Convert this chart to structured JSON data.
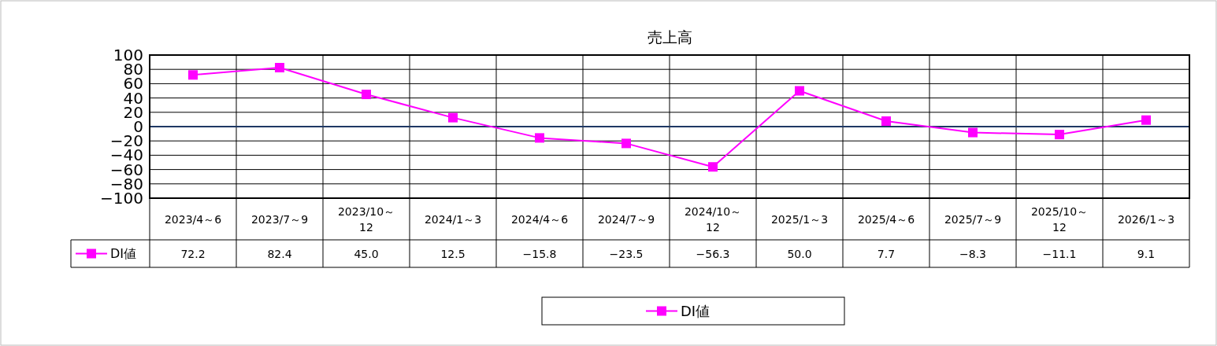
{
  "chart_data": {
    "type": "line",
    "title": "売上高",
    "categories": [
      "2023/4～6",
      "2023/7～9",
      "2023/10～12",
      "2024/1～3",
      "2024/4～6",
      "2024/7～9",
      "2024/10～12",
      "2025/1～3",
      "2025/4～6",
      "2025/7～9",
      "2025/10～12",
      "2026/1～3"
    ],
    "series": [
      {
        "name": "DI値",
        "color": "#ff00ff",
        "values": [
          72.2,
          82.4,
          45.0,
          12.5,
          -15.8,
          -23.5,
          -56.3,
          50.0,
          7.7,
          -8.3,
          -11.1,
          9.1
        ],
        "value_labels": [
          "72.2",
          "82.4",
          "45.0",
          "12.5",
          "−15.8",
          "−23.5",
          "−56.3",
          "50.0",
          "7.7",
          "−8.3",
          "−11.1",
          "9.1"
        ]
      }
    ],
    "ylim": [
      -100,
      100
    ],
    "yticks": [
      {
        "value": -100,
        "label": "−100"
      },
      {
        "value": -80,
        "label": "−80"
      },
      {
        "value": -60,
        "label": "−60"
      },
      {
        "value": -40,
        "label": "−40"
      },
      {
        "value": -20,
        "label": "−20"
      },
      0,
      20,
      40,
      60,
      80,
      100
    ],
    "ref_lines": [
      {
        "axis": "y",
        "value": 0,
        "color": "#1f3864"
      }
    ],
    "grid": true,
    "marker": "square",
    "line_style": "solid",
    "legend": "bottom"
  }
}
